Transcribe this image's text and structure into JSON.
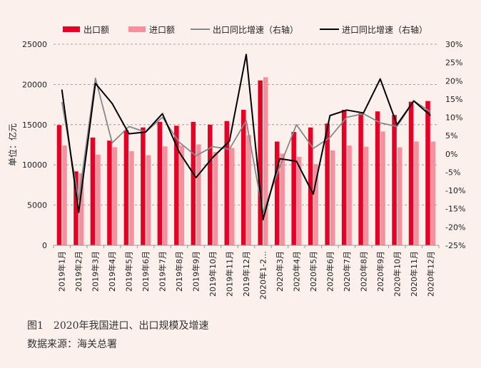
{
  "chart_data": {
    "type": "bar",
    "categories": [
      "2019年1月",
      "2019年2月",
      "2019年3月",
      "2019年4月",
      "2019年5月",
      "2019年6月",
      "2019年7月",
      "2019年8月",
      "2019年9月",
      "2019年10月",
      "2019年11月",
      "2019年12月",
      "2020年1-2…",
      "2020年3月",
      "2020年4月",
      "2020年5月",
      "2020年6月",
      "2020年7月",
      "2020年8月",
      "2020年9月",
      "2020年10月",
      "2020年11月",
      "2020年12月"
    ],
    "series": [
      {
        "name": "出口额",
        "kind": "bar",
        "axis": "left",
        "color": "#e60026",
        "values": [
          14950,
          9190,
          13400,
          13020,
          14300,
          14650,
          15350,
          14870,
          15350,
          15000,
          15450,
          16850,
          20500,
          12900,
          14100,
          14650,
          15140,
          16850,
          16400,
          16650,
          16200,
          17850,
          17940
        ]
      },
      {
        "name": "进口额",
        "kind": "bar",
        "axis": "left",
        "color": "#f4919c",
        "values": [
          12400,
          8950,
          11280,
          12200,
          11700,
          11200,
          12300,
          12400,
          12550,
          11600,
          12100,
          13700,
          20900,
          11400,
          11000,
          10100,
          11800,
          12400,
          12250,
          14150,
          12180,
          12910,
          12900
        ]
      },
      {
        "name": "出口同比增速（右轴）",
        "kind": "line",
        "axis": "right",
        "color": "#888888",
        "values": [
          14.2,
          -12.5,
          20.7,
          3,
          7.5,
          6,
          10,
          3.2,
          -0.5,
          2,
          1.3,
          9.1,
          -16.1,
          -3.5,
          8,
          1.5,
          4.5,
          10,
          11,
          8.5,
          7.5,
          14.5,
          11.5
        ]
      },
      {
        "name": "进口同比增速（右轴）",
        "kind": "line",
        "axis": "right",
        "color": "#000000",
        "values": [
          17.6,
          -16,
          19.3,
          13.8,
          5.5,
          6,
          11,
          0.5,
          -6.5,
          -1,
          3.5,
          27.2,
          -18,
          -1.3,
          -2,
          -11,
          10.5,
          12,
          11.2,
          20.5,
          8,
          14.5,
          10.5
        ]
      }
    ],
    "left_axis": {
      "label": "单位：亿元",
      "ticks": [
        "0",
        "5000",
        "10000",
        "15000",
        "20000",
        "25000"
      ],
      "range": [
        0,
        25000
      ]
    },
    "right_axis": {
      "ticks": [
        "-25%",
        "-20%",
        "-15%",
        "-10%",
        "-5%",
        "0%",
        "5%",
        "10%",
        "15%",
        "20%",
        "25%",
        "30%"
      ],
      "range": [
        -25,
        30
      ]
    },
    "legend_position": "top",
    "grid": "horizontal dashed"
  },
  "caption": {
    "figure": "图1　2020年我国进口、出口规模及增速",
    "source": "数据来源：海关总署"
  }
}
